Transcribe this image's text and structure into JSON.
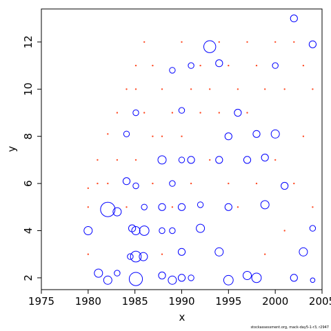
{
  "chart_data": {
    "type": "scatter",
    "title": "",
    "xlabel": "x",
    "ylabel": "y",
    "xlim": [
      1975,
      2005
    ],
    "ylim": [
      1.5,
      13.4
    ],
    "xticks": [
      1975,
      1980,
      1985,
      1990,
      1995,
      2000,
      2005
    ],
    "yticks": [
      2,
      4,
      6,
      8,
      10,
      12
    ],
    "grid": false,
    "legend": "none",
    "note": "stockassessment.org, mack-day5-1-r3, r2947",
    "colors": {
      "positive": "#0000ff",
      "negative": "#ff4e28"
    },
    "markers": "open circles (positive residuals) and small filled points (negative residuals), size proportional to magnitude",
    "series": [
      {
        "style": "open-circle",
        "color": "#0000ff",
        "points": [
          [
            1980.0,
            4.0,
            0.5
          ],
          [
            1981.1,
            2.2,
            0.5
          ],
          [
            1982.1,
            1.9,
            0.5
          ],
          [
            1982.1,
            4.9,
            1.0
          ],
          [
            1983.1,
            2.2,
            0.3
          ],
          [
            1983.1,
            4.8,
            0.5
          ],
          [
            1984.1,
            6.1,
            0.4
          ],
          [
            1984.1,
            8.1,
            0.3
          ],
          [
            1984.5,
            2.9,
            0.3
          ],
          [
            1984.7,
            4.1,
            0.4
          ],
          [
            1985.1,
            1.95,
            0.9
          ],
          [
            1985.1,
            2.9,
            0.7
          ],
          [
            1985.1,
            4.0,
            0.5
          ],
          [
            1985.1,
            5.9,
            0.3
          ],
          [
            1985.1,
            9.0,
            0.3
          ],
          [
            1985.9,
            2.9,
            0.5
          ],
          [
            1986.0,
            4.0,
            0.6
          ],
          [
            1986.0,
            5.0,
            0.3
          ],
          [
            1987.9,
            2.1,
            0.4
          ],
          [
            1987.9,
            4.0,
            0.3
          ],
          [
            1987.9,
            5.0,
            0.4
          ],
          [
            1987.9,
            7.0,
            0.5
          ],
          [
            1989.0,
            1.9,
            0.5
          ],
          [
            1989.0,
            4.0,
            0.3
          ],
          [
            1989.0,
            6.0,
            0.3
          ],
          [
            1989.0,
            10.8,
            0.3
          ],
          [
            1990.0,
            2.0,
            0.4
          ],
          [
            1990.0,
            3.1,
            0.4
          ],
          [
            1990.0,
            5.0,
            0.4
          ],
          [
            1990.0,
            7.0,
            0.3
          ],
          [
            1990.0,
            9.1,
            0.3
          ],
          [
            1991.0,
            2.0,
            0.3
          ],
          [
            1991.0,
            7.0,
            0.4
          ],
          [
            1991.0,
            11.0,
            0.3
          ],
          [
            1992.0,
            4.1,
            0.5
          ],
          [
            1992.0,
            5.1,
            0.3
          ],
          [
            1993.0,
            11.8,
            0.8
          ],
          [
            1994.0,
            3.1,
            0.5
          ],
          [
            1994.0,
            7.0,
            0.4
          ],
          [
            1994.0,
            11.1,
            0.4
          ],
          [
            1995.0,
            1.9,
            0.6
          ],
          [
            1995.0,
            5.0,
            0.4
          ],
          [
            1995.0,
            8.0,
            0.4
          ],
          [
            1996.0,
            9.0,
            0.4
          ],
          [
            1997.0,
            2.1,
            0.5
          ],
          [
            1997.0,
            7.0,
            0.4
          ],
          [
            1998.0,
            2.0,
            0.6
          ],
          [
            1998.0,
            8.1,
            0.4
          ],
          [
            1998.9,
            5.1,
            0.5
          ],
          [
            1998.9,
            7.1,
            0.4
          ],
          [
            2000.0,
            8.1,
            0.5
          ],
          [
            2000.0,
            11.0,
            0.3
          ],
          [
            2001.0,
            5.9,
            0.4
          ],
          [
            2002.0,
            2.0,
            0.4
          ],
          [
            2002.0,
            13.0,
            0.4
          ],
          [
            2003.0,
            3.1,
            0.5
          ],
          [
            2004.0,
            11.9,
            0.4
          ],
          [
            2004.0,
            4.1,
            0.3
          ],
          [
            2004.0,
            1.9,
            0.2
          ]
        ]
      },
      {
        "style": "filled-point",
        "color": "#ff4e28",
        "points": [
          [
            1980.0,
            5.8,
            0.2
          ],
          [
            1980.0,
            5.0,
            0.2
          ],
          [
            1980.0,
            3.0,
            0.2
          ],
          [
            1981.0,
            7.0,
            0.2
          ],
          [
            1981.0,
            6.0,
            0.2
          ],
          [
            1982.1,
            8.1,
            0.2
          ],
          [
            1982.1,
            6.0,
            0.2
          ],
          [
            1983.1,
            9.0,
            0.2
          ],
          [
            1983.1,
            7.0,
            0.2
          ],
          [
            1984.1,
            10.0,
            0.2
          ],
          [
            1984.1,
            5.0,
            0.2
          ],
          [
            1985.1,
            11.0,
            0.2
          ],
          [
            1985.1,
            10.0,
            0.2
          ],
          [
            1985.1,
            7.0,
            0.2
          ],
          [
            1986.0,
            12.0,
            0.2
          ],
          [
            1986.0,
            9.0,
            0.2
          ],
          [
            1986.9,
            11.0,
            0.2
          ],
          [
            1986.9,
            8.0,
            0.2
          ],
          [
            1986.9,
            6.0,
            0.2
          ],
          [
            1987.9,
            10.0,
            0.2
          ],
          [
            1987.9,
            8.0,
            0.2
          ],
          [
            1987.9,
            3.0,
            0.2
          ],
          [
            1989.0,
            9.0,
            0.2
          ],
          [
            1989.0,
            5.0,
            0.2
          ],
          [
            1990.0,
            12.0,
            0.2
          ],
          [
            1990.0,
            8.0,
            0.2
          ],
          [
            1991.0,
            10.0,
            0.2
          ],
          [
            1991.0,
            6.0,
            0.2
          ],
          [
            1992.0,
            11.0,
            0.2
          ],
          [
            1992.0,
            9.0,
            0.2
          ],
          [
            1993.0,
            10.0,
            0.2
          ],
          [
            1993.0,
            7.0,
            0.2
          ],
          [
            1994.0,
            12.0,
            0.2
          ],
          [
            1994.0,
            9.0,
            0.2
          ],
          [
            1995.0,
            11.0,
            0.2
          ],
          [
            1995.0,
            6.0,
            0.2
          ],
          [
            1996.0,
            10.0,
            0.2
          ],
          [
            1996.0,
            5.0,
            0.2
          ],
          [
            1997.0,
            12.0,
            0.2
          ],
          [
            1997.0,
            9.0,
            0.2
          ],
          [
            1998.0,
            11.0,
            0.2
          ],
          [
            1998.0,
            6.0,
            0.2
          ],
          [
            1998.9,
            10.0,
            0.2
          ],
          [
            1998.9,
            3.0,
            0.2
          ],
          [
            2000.0,
            12.0,
            0.2
          ],
          [
            2000.0,
            7.0,
            0.2
          ],
          [
            2001.0,
            10.0,
            0.2
          ],
          [
            2001.0,
            4.0,
            0.2
          ],
          [
            2002.0,
            12.0,
            0.2
          ],
          [
            2002.0,
            6.0,
            0.2
          ],
          [
            2003.0,
            11.0,
            0.2
          ],
          [
            2003.0,
            8.0,
            0.2
          ],
          [
            2004.0,
            10.0,
            0.2
          ],
          [
            2004.0,
            5.0,
            0.2
          ]
        ]
      }
    ]
  }
}
